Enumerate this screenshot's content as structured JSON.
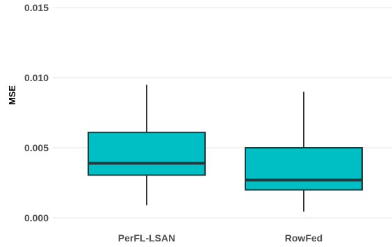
{
  "chart_data": {
    "type": "box",
    "ylabel": "MSE",
    "xlabel": "",
    "ylim": [
      0,
      0.015
    ],
    "yticks": [
      "0.000",
      "0.005",
      "0.010",
      "0.015"
    ],
    "ytick_values": [
      0,
      0.005,
      0.01,
      0.015
    ],
    "grid": true,
    "categories": [
      "PerFL-LSAN",
      "RowFed"
    ],
    "boxes": [
      {
        "category": "PerFL-LSAN",
        "whisker_low": 0.0009,
        "q1": 0.00305,
        "median": 0.0039,
        "q3": 0.0061,
        "whisker_high": 0.0095
      },
      {
        "category": "RowFed",
        "whisker_low": 0.00045,
        "q1": 0.002,
        "median": 0.0027,
        "q3": 0.005,
        "whisker_high": 0.009
      }
    ],
    "colors": {
      "box_fill": "#00BFC4",
      "box_stroke": "#1f3a3d",
      "median": "#1f3a3d",
      "whisker": "#333333"
    }
  }
}
